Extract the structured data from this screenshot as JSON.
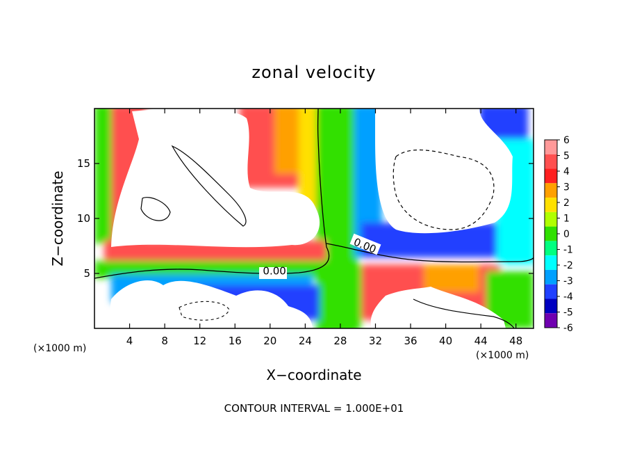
{
  "chart_data": {
    "type": "heatmap",
    "title": "zonal velocity",
    "xlabel": "X−coordinate",
    "ylabel": "Z−coordinate",
    "x_unit": "(×1000 m)",
    "z_unit": "(×1000 m)",
    "xlim": [
      0,
      50
    ],
    "ylim": [
      0,
      20
    ],
    "x_ticks": [
      4,
      8,
      12,
      16,
      20,
      24,
      28,
      32,
      36,
      40,
      44,
      48
    ],
    "y_ticks": [
      5,
      10,
      15
    ],
    "colorbar": {
      "levels": [
        6,
        5,
        4,
        3,
        2,
        1,
        0,
        -1,
        -2,
        -3,
        -4,
        -5,
        -6
      ],
      "colors": [
        "#ff9999",
        "#ff5050",
        "#ff2020",
        "#ffa000",
        "#ffe000",
        "#b0ff00",
        "#30e000",
        "#00ff80",
        "#00ffff",
        "#00a0ff",
        "#2040ff",
        "#0000c0",
        "#7000b0"
      ]
    },
    "contour_labels": [
      {
        "text": "0.00",
        "x": 20.5,
        "z": 4.9
      },
      {
        "text": "0.00",
        "x": 30.8,
        "z": 7.2
      }
    ],
    "footnote": "CONTOUR INTERVAL = 1.000E+01"
  }
}
